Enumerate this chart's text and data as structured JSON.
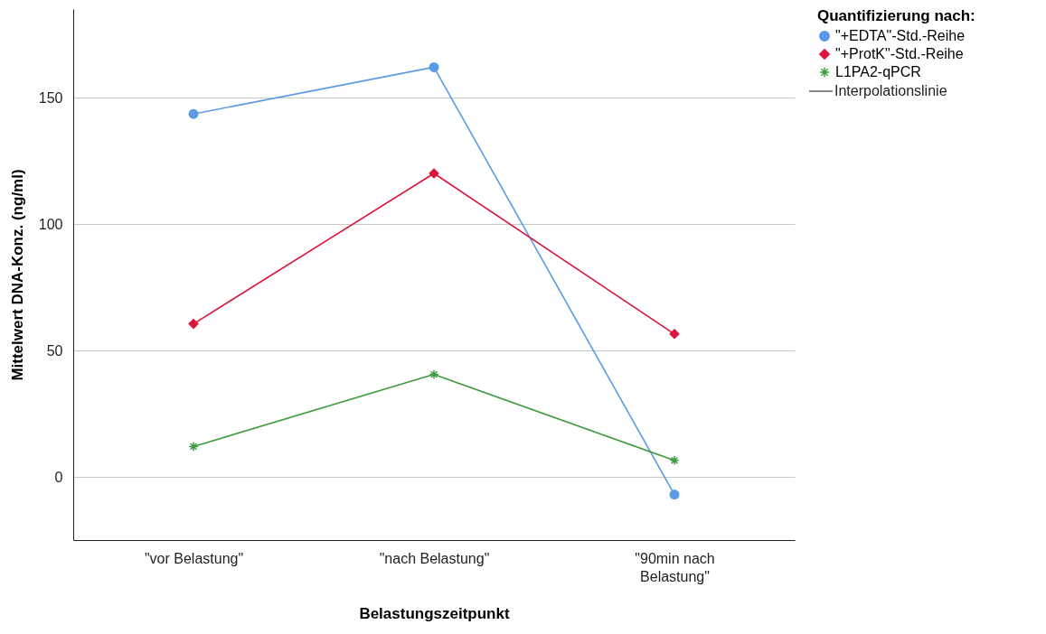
{
  "chart_data": {
    "type": "line",
    "xlabel": "Belastungszeitpunkt",
    "ylabel": "Mittelwert DNA-Konz. (ng/ml)",
    "legend_title": "Quantifizierung nach:",
    "categories": [
      "\"vor Belastung\"",
      "\"nach Belastung\"",
      "\"90min nach Belastung\""
    ],
    "series": [
      {
        "name": "\"+EDTA\"-Std.-Reihe",
        "color": "#5b9be6",
        "marker": "circle",
        "values": [
          143.5,
          162,
          -7
        ]
      },
      {
        "name": "\"+ProtK\"-Std.-Reihe",
        "color": "#dc143c",
        "marker": "diamond",
        "values": [
          60.5,
          120,
          56.5
        ]
      },
      {
        "name": "L1PA2-qPCR",
        "color": "#3f9a3f",
        "marker": "cross",
        "values": [
          12,
          40.5,
          6.5
        ]
      }
    ],
    "annotations": [
      "Interpolationslinie"
    ],
    "ylim": [
      -25,
      185
    ],
    "yticks": [
      0,
      50,
      100,
      150
    ],
    "grid": "y",
    "legend": "top right",
    "line_style": "solid"
  }
}
